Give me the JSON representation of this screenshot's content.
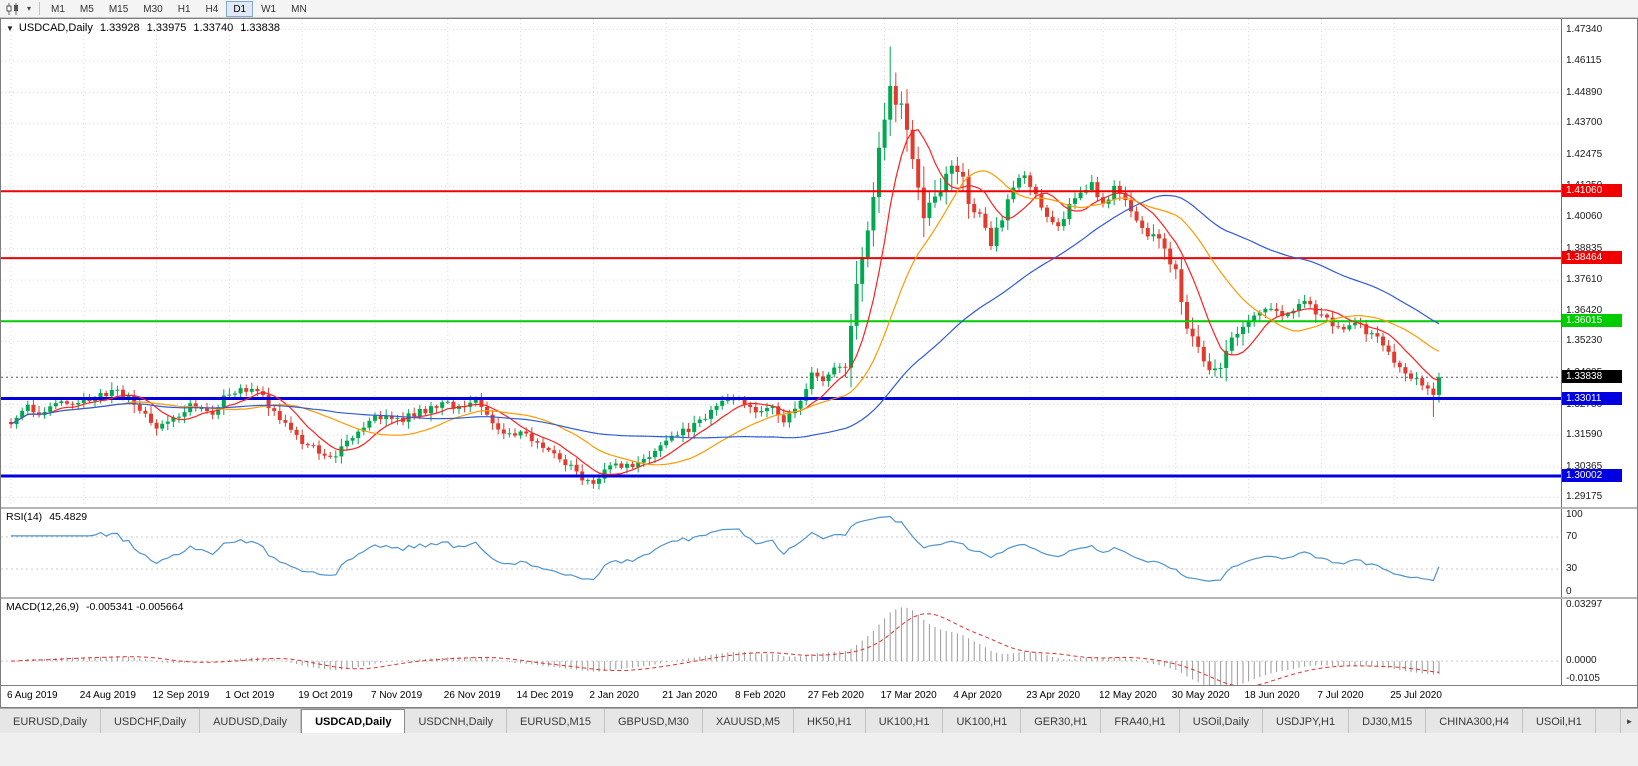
{
  "toolbar": {
    "periods": [
      "M1",
      "M5",
      "M15",
      "M30",
      "H1",
      "H4",
      "D1",
      "W1",
      "MN"
    ],
    "active_period": "D1"
  },
  "icons": {
    "title_arrow": "▼",
    "caret": "▾",
    "tab_scroll": "►"
  },
  "price_scale": {
    "ticks": [
      "1.47340",
      "1.46115",
      "1.44890",
      "1.43700",
      "1.42475",
      "1.41250",
      "1.40060",
      "1.38835",
      "1.37610",
      "1.36420",
      "1.35230",
      "1.34005",
      "1.32780",
      "1.31590",
      "1.30365",
      "1.29175"
    ]
  },
  "chart_data": {
    "type": "candlestick",
    "symbol": "USDCAD",
    "timeframe": "Daily",
    "title": "USDCAD,Daily",
    "ohlc": {
      "open": "1.33928",
      "high": "1.33975",
      "low": "1.33740",
      "close": "1.33838"
    },
    "y_range": [
      1.288,
      1.4775
    ],
    "bar_count": 256,
    "bars_per_label": 13,
    "last_close": 1.33838,
    "dates": [
      "6 Aug 2019",
      "24 Aug 2019",
      "12 Sep 2019",
      "1 Oct 2019",
      "19 Oct 2019",
      "7 Nov 2019",
      "26 Nov 2019",
      "14 Dec 2019",
      "2 Jan 2020",
      "21 Jan 2020",
      "8 Feb 2020",
      "27 Feb 2020",
      "17 Mar 2020",
      "4 Apr 2020",
      "23 Apr 2020",
      "12 May 2020",
      "30 May 2020",
      "18 Jun 2020",
      "7 Jul 2020",
      "25 Jul 2020"
    ],
    "levels": [
      {
        "price": 1.4106,
        "label": "1.41060",
        "color": "#f00000",
        "width": 2
      },
      {
        "price": 1.38464,
        "label": "1.38464",
        "color": "#f00000",
        "width": 2
      },
      {
        "price": 1.36015,
        "label": "1.36015",
        "color": "#00cc00",
        "width": 2
      },
      {
        "price": 1.33011,
        "label": "1.33011",
        "color": "#0000e0",
        "width": 3
      },
      {
        "price": 1.30002,
        "label": "1.30002",
        "color": "#0000e0",
        "width": 3
      }
    ],
    "current_price": {
      "value": 1.33838,
      "label": "1.33838",
      "badge_color": "#000000"
    },
    "moving_averages": [
      {
        "period": 8,
        "color_key": "ma_fast"
      },
      {
        "period": 21,
        "color_key": "ma_mid"
      },
      {
        "period": 55,
        "color_key": "ma_slow"
      }
    ],
    "colors": {
      "up": "#00a94f",
      "down": "#e23b2e",
      "grid": "#dadada",
      "ma_fast": "#ff2020",
      "ma_mid": "#ff9a00",
      "ma_slow": "#2f5bd8",
      "rsi": "#4f94cd",
      "macd_hist": "#9a9a9a",
      "macd_signal": "#e03030",
      "level_dotted": "#c8c8c8"
    },
    "close_anchors": [
      [
        0,
        1.3215
      ],
      [
        3,
        1.3268
      ],
      [
        6,
        1.3242
      ],
      [
        9,
        1.3288
      ],
      [
        13,
        1.3292
      ],
      [
        16,
        1.3322
      ],
      [
        19,
        1.3332
      ],
      [
        22,
        1.3282
      ],
      [
        26,
        1.3185
      ],
      [
        29,
        1.3232
      ],
      [
        32,
        1.3268
      ],
      [
        36,
        1.3242
      ],
      [
        39,
        1.3328
      ],
      [
        42,
        1.3338
      ],
      [
        45,
        1.3305
      ],
      [
        48,
        1.3215
      ],
      [
        52,
        1.3132
      ],
      [
        55,
        1.3092
      ],
      [
        57,
        1.3068
      ],
      [
        61,
        1.3162
      ],
      [
        65,
        1.3228
      ],
      [
        69,
        1.3215
      ],
      [
        72,
        1.3242
      ],
      [
        75,
        1.3262
      ],
      [
        78,
        1.3282
      ],
      [
        81,
        1.3262
      ],
      [
        83,
        1.3296
      ],
      [
        85,
        1.3252
      ],
      [
        87,
        1.3178
      ],
      [
        91,
        1.3168
      ],
      [
        94,
        1.3132
      ],
      [
        97,
        1.3085
      ],
      [
        100,
        1.3042
      ],
      [
        102,
        1.2998
      ],
      [
        104,
        1.2968
      ],
      [
        106,
        1.3012
      ],
      [
        108,
        1.3052
      ],
      [
        110,
        1.3038
      ],
      [
        113,
        1.3062
      ],
      [
        117,
        1.3132
      ],
      [
        120,
        1.3172
      ],
      [
        123,
        1.3212
      ],
      [
        126,
        1.3262
      ],
      [
        128,
        1.3298
      ],
      [
        130,
        1.3302
      ],
      [
        132,
        1.3262
      ],
      [
        134,
        1.3248
      ],
      [
        136,
        1.3272
      ],
      [
        138,
        1.3222
      ],
      [
        140,
        1.3262
      ],
      [
        143,
        1.3392
      ],
      [
        145,
        1.3368
      ],
      [
        147,
        1.3422
      ],
      [
        149,
        1.3432
      ],
      [
        151,
        1.3735
      ],
      [
        153,
        1.3925
      ],
      [
        155,
        1.4265
      ],
      [
        157,
        1.4492
      ],
      [
        158,
        1.4418
      ],
      [
        159,
        1.4462
      ],
      [
        161,
        1.4205
      ],
      [
        163,
        1.3992
      ],
      [
        165,
        1.4062
      ],
      [
        167,
        1.4185
      ],
      [
        169,
        1.4212
      ],
      [
        171,
        1.4092
      ],
      [
        173,
        1.4022
      ],
      [
        175,
        1.3905
      ],
      [
        177,
        1.3998
      ],
      [
        179,
        1.4135
      ],
      [
        181,
        1.4172
      ],
      [
        183,
        1.4092
      ],
      [
        185,
        1.4002
      ],
      [
        187,
        1.3962
      ],
      [
        189,
        1.4062
      ],
      [
        191,
        1.4098
      ],
      [
        193,
        1.4128
      ],
      [
        195,
        1.4052
      ],
      [
        197,
        1.4122
      ],
      [
        199,
        1.4058
      ],
      [
        201,
        1.3985
      ],
      [
        203,
        1.3932
      ],
      [
        205,
        1.3902
      ],
      [
        207,
        1.3822
      ],
      [
        208,
        1.3782
      ],
      [
        210,
        1.3572
      ],
      [
        212,
        1.3482
      ],
      [
        214,
        1.3398
      ],
      [
        216,
        1.3442
      ],
      [
        218,
        1.3535
      ],
      [
        221,
        1.3602
      ],
      [
        223,
        1.3648
      ],
      [
        225,
        1.3662
      ],
      [
        227,
        1.3622
      ],
      [
        229,
        1.3655
      ],
      [
        231,
        1.3678
      ],
      [
        233,
        1.3635
      ],
      [
        235,
        1.3612
      ],
      [
        237,
        1.3565
      ],
      [
        239,
        1.3595
      ],
      [
        241,
        1.3582
      ],
      [
        243,
        1.3545
      ],
      [
        245,
        1.3512
      ],
      [
        247,
        1.3452
      ],
      [
        249,
        1.3408
      ],
      [
        251,
        1.3372
      ],
      [
        253,
        1.3342
      ],
      [
        254,
        1.3312
      ],
      [
        255,
        1.33838
      ]
    ],
    "volatility_zones": [
      [
        148,
        172,
        2.4
      ],
      [
        204,
        220,
        1.6
      ]
    ],
    "wick_overrides": [
      {
        "i": 104,
        "low": 1.2951
      },
      {
        "i": 157,
        "high": 1.4668
      },
      {
        "i": 254,
        "low": 1.323
      }
    ]
  },
  "indicators": {
    "rsi": {
      "label": "RSI(14)",
      "value": "45.4829",
      "period": 14,
      "levels": [
        70,
        30
      ],
      "scale": [
        {
          "v": 100,
          "t": "100"
        },
        {
          "v": 70,
          "t": "70"
        },
        {
          "v": 30,
          "t": "30"
        },
        {
          "v": 0,
          "t": "0"
        }
      ]
    },
    "macd": {
      "label": "MACD(12,26,9)",
      "values": "-0.005341 -0.005664",
      "fast": 12,
      "slow": 26,
      "signal": 9,
      "range": [
        -0.0115,
        0.0335
      ],
      "scale": [
        {
          "v": 0.03297,
          "t": "0.03297"
        },
        {
          "v": 0,
          "t": "0.0000"
        },
        {
          "v": -0.0105,
          "t": "-0.0105"
        }
      ]
    }
  },
  "tabbar": {
    "tabs": [
      "EURUSD,Daily",
      "USDCHF,Daily",
      "AUDUSD,Daily",
      "USDCAD,Daily",
      "USDCNH,Daily",
      "EURUSD,M15",
      "GBPUSD,M30",
      "XAUUSD,M5",
      "HK50,H1",
      "UK100,H1",
      "UK100,H1",
      "GER30,H1",
      "FRA40,H1",
      "USOil,Daily",
      "USDJPY,H1",
      "DJ30,M15",
      "CHINA300,H4",
      "USOil,H1"
    ],
    "active_index": 3
  }
}
